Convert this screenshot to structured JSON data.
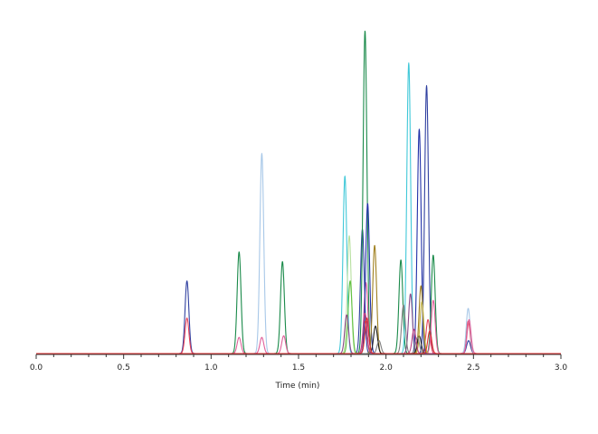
{
  "chart_data": {
    "type": "line",
    "title": "",
    "xlabel": "Time (min)",
    "ylabel": "",
    "xlim": [
      0,
      3
    ],
    "ylim": [
      0,
      100
    ],
    "xticks": [
      "0.0",
      "0.5",
      "1.0",
      "1.5",
      "2.0",
      "2.5",
      "3.0"
    ],
    "grid": false,
    "legend": "none",
    "baseline_color": "#2aa3a3",
    "peak_width_min": 0.011,
    "series": [
      {
        "color": "#3040a0",
        "peaks": [
          [
            0.862,
            22.5
          ],
          [
            1.865,
            38.5
          ],
          [
            2.232,
            83.0
          ],
          [
            2.472,
            4.0
          ]
        ]
      },
      {
        "color": "#e8445a",
        "peaks": [
          [
            0.862,
            11.0
          ],
          [
            1.88,
            10.0
          ],
          [
            2.24,
            10.5
          ],
          [
            2.47,
            10.0
          ]
        ]
      },
      {
        "color": "#1a8a4a",
        "peaks": [
          [
            1.16,
            31.5
          ],
          [
            1.408,
            28.5
          ],
          [
            1.88,
            100.0
          ],
          [
            2.085,
            29.0
          ],
          [
            2.27,
            30.5
          ]
        ]
      },
      {
        "color": "#a8c8e8",
        "peaks": [
          [
            1.29,
            62.0
          ],
          [
            2.47,
            14.0
          ]
        ]
      },
      {
        "color": "#e0609a",
        "peaks": [
          [
            1.16,
            5.0
          ],
          [
            1.29,
            5.0
          ],
          [
            1.415,
            5.5
          ],
          [
            1.885,
            22.0
          ],
          [
            2.27,
            16.5
          ],
          [
            2.475,
            10.5
          ]
        ]
      },
      {
        "color": "#40c8d8",
        "peaks": [
          [
            1.765,
            55.0
          ],
          [
            2.13,
            90.0
          ]
        ]
      },
      {
        "color": "#b8e0a0",
        "peaks": [
          [
            1.79,
            36.5
          ]
        ]
      },
      {
        "color": "#60c040",
        "peaks": [
          [
            1.795,
            22.5
          ]
        ]
      },
      {
        "color": "#2030a8",
        "peaks": [
          [
            1.895,
            46.5
          ],
          [
            2.19,
            69.5
          ]
        ]
      },
      {
        "color": "#8a4a8a",
        "peaks": [
          [
            1.775,
            12.0
          ],
          [
            1.89,
            10.0
          ],
          [
            2.14,
            18.5
          ]
        ]
      },
      {
        "color": "#a08020",
        "peaks": [
          [
            1.935,
            33.5
          ],
          [
            2.2,
            21.0
          ]
        ]
      },
      {
        "color": "#202020",
        "peaks": [
          [
            1.94,
            8.5
          ],
          [
            2.19,
            5.5
          ]
        ]
      },
      {
        "color": "#c0b040",
        "peaks": [
          [
            2.205,
            16.0
          ]
        ]
      },
      {
        "color": "#808080",
        "peaks": [
          [
            1.96,
            4.0
          ],
          [
            2.1,
            15.0
          ],
          [
            2.18,
            5.0
          ]
        ]
      },
      {
        "color": "#c04080",
        "peaks": [
          [
            1.88,
            12.5
          ],
          [
            2.16,
            7.5
          ]
        ]
      },
      {
        "color": "#e03030",
        "peaks": [
          [
            1.89,
            11.0
          ],
          [
            2.25,
            7.0
          ]
        ]
      }
    ]
  }
}
